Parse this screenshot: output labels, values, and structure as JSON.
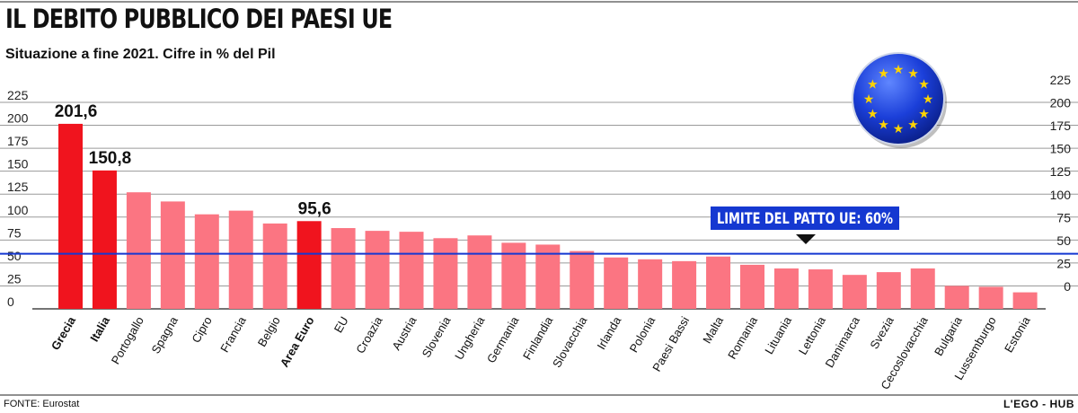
{
  "header": {
    "title": "IL DEBITO PUBBLICO DEI PAESI UE",
    "subtitle": "Situazione a fine 2021. Cifre in % del Pil"
  },
  "footer": {
    "source": "FONTE: Eurostat",
    "brand": "L'EGO - HUB"
  },
  "colors": {
    "highlight_bar": "#f0141e",
    "regular_bar": "#fb7582",
    "limit_line": "#1538d1",
    "limit_label_bg": "#1538d1",
    "eu_flag_blue": "#1b3fd9",
    "eu_star": "#ffd400"
  },
  "chart_data": {
    "type": "bar",
    "title": "IL DEBITO PUBBLICO DEI PAESI UE",
    "subtitle": "Situazione a fine 2021. Cifre in % del Pil",
    "ylim": [
      0,
      225
    ],
    "yticks": [
      0,
      25,
      50,
      75,
      100,
      125,
      150,
      175,
      200,
      225
    ],
    "grid": true,
    "categories": [
      "Grecia",
      "Italia",
      "Portogallo",
      "Spagna",
      "Cipro",
      "Francia",
      "Belgio",
      "Area Euro",
      "EU",
      "Croazia",
      "Austria",
      "Slovenia",
      "Ungheria",
      "Germania",
      "Finlandia",
      "Slovacchia",
      "Irlanda",
      "Polonia",
      "Paesi Bassi",
      "Malta",
      "Romania",
      "Lituania",
      "Lettonia",
      "Danimarca",
      "Svezia",
      "Cecoslovacchia",
      "Bulgaria",
      "Lussemburgo",
      "Estonia"
    ],
    "values": [
      201.6,
      150.8,
      127,
      117,
      103,
      107,
      93,
      95.6,
      88,
      85,
      84,
      77,
      80,
      72,
      70,
      63,
      56,
      54,
      52,
      57,
      48,
      44,
      43,
      37,
      40,
      44,
      25,
      24,
      18
    ],
    "highlighted": [
      "Grecia",
      "Italia",
      "Area Euro"
    ],
    "data_labels": [
      {
        "category": "Grecia",
        "text": "201,6"
      },
      {
        "category": "Italia",
        "text": "150,8"
      },
      {
        "category": "Area Euro",
        "text": "95,6"
      }
    ],
    "reference_line": {
      "value": 60,
      "label": "LIMITE DEL PATTO UE: 60%"
    }
  }
}
